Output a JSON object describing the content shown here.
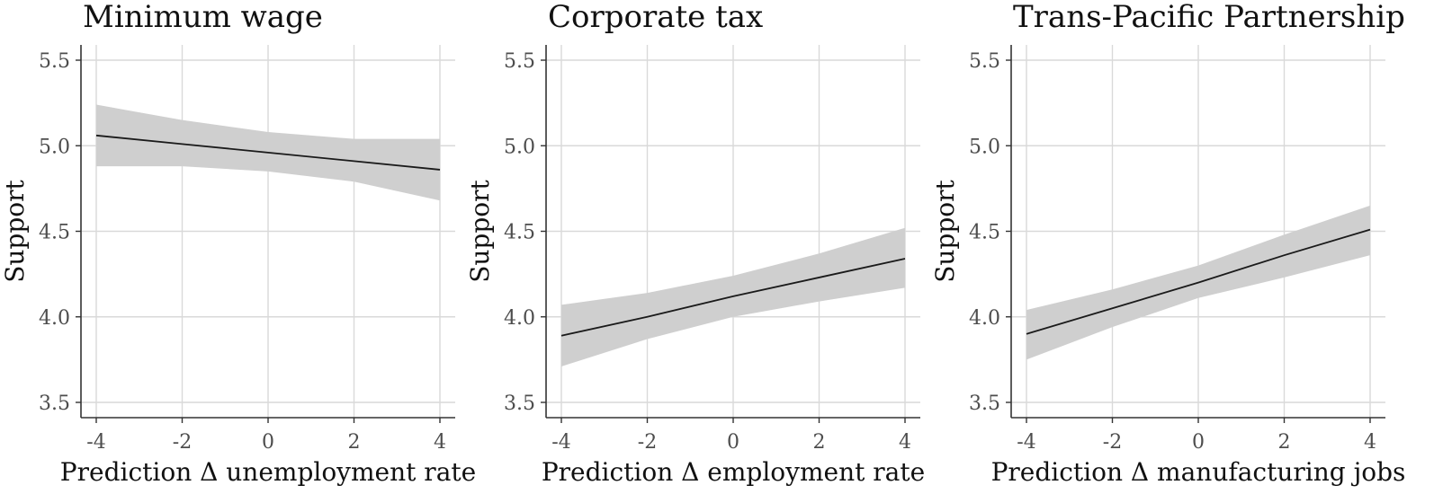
{
  "chart_data": [
    {
      "type": "line",
      "title": "Minimum wage",
      "xlabel": "Prediction Δ unemployment rate",
      "ylabel": "Support",
      "xlim": [
        -4,
        4
      ],
      "ylim": [
        3.5,
        5.5
      ],
      "xticks": [
        "-4",
        "-2",
        "0",
        "2",
        "4"
      ],
      "yticks": [
        "3.5",
        "4.0",
        "4.5",
        "5.0",
        "5.5"
      ],
      "grid": true,
      "x": [
        -4,
        -2,
        0,
        2,
        4
      ],
      "fit": [
        5.06,
        5.01,
        4.96,
        4.91,
        4.86
      ],
      "lower": [
        4.88,
        4.88,
        4.85,
        4.79,
        4.68
      ],
      "upper": [
        5.24,
        5.15,
        5.08,
        5.04,
        5.04
      ]
    },
    {
      "type": "line",
      "title": "Corporate tax",
      "xlabel": "Prediction Δ employment rate",
      "ylabel": "Support",
      "xlim": [
        -4,
        4
      ],
      "ylim": [
        3.5,
        5.5
      ],
      "xticks": [
        "-4",
        "-2",
        "0",
        "2",
        "4"
      ],
      "yticks": [
        "3.5",
        "4.0",
        "4.5",
        "5.0",
        "5.5"
      ],
      "grid": true,
      "x": [
        -4,
        -2,
        0,
        2,
        4
      ],
      "fit": [
        3.89,
        4.0,
        4.12,
        4.23,
        4.34
      ],
      "lower": [
        3.71,
        3.87,
        4.0,
        4.09,
        4.17
      ],
      "upper": [
        4.07,
        4.14,
        4.24,
        4.37,
        4.52
      ]
    },
    {
      "type": "line",
      "title": "Trans-Pacific Partnership",
      "xlabel": "Prediction Δ manufacturing jobs",
      "ylabel": "Support",
      "xlim": [
        -4,
        4
      ],
      "ylim": [
        3.5,
        5.5
      ],
      "xticks": [
        "-4",
        "-2",
        "0",
        "2",
        "4"
      ],
      "yticks": [
        "3.5",
        "4.0",
        "4.5",
        "5.0",
        "5.5"
      ],
      "grid": true,
      "x": [
        -4,
        -2,
        0,
        2,
        4
      ],
      "fit": [
        3.9,
        4.05,
        4.2,
        4.36,
        4.51
      ],
      "lower": [
        3.75,
        3.94,
        4.11,
        4.23,
        4.36
      ],
      "upper": [
        4.04,
        4.16,
        4.3,
        4.48,
        4.65
      ]
    }
  ]
}
